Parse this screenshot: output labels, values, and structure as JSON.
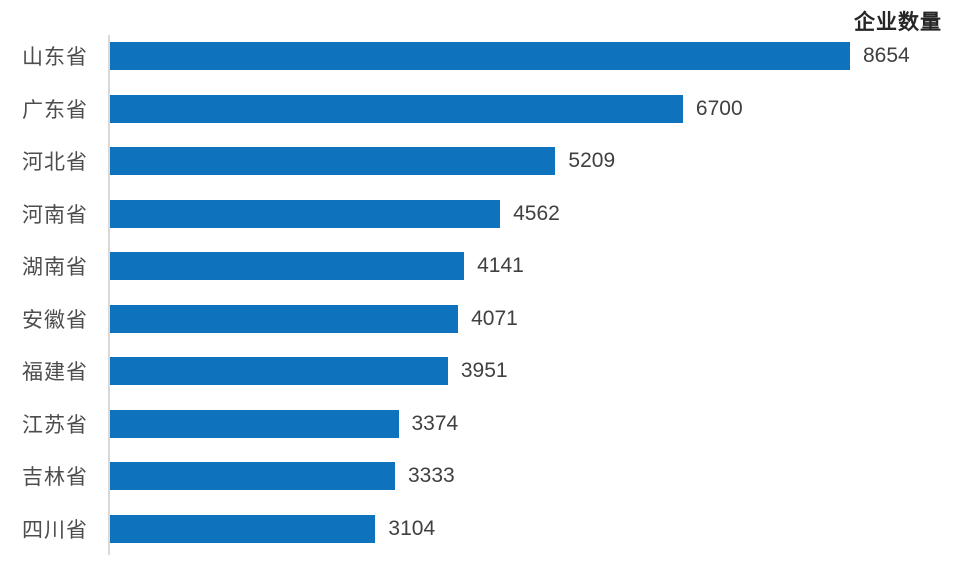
{
  "chart": {
    "title": "企业数量"
  },
  "chart_data": {
    "type": "bar",
    "orientation": "horizontal",
    "title": "企业数量",
    "xlabel": "",
    "ylabel": "",
    "categories": [
      "山东省",
      "广东省",
      "河北省",
      "河南省",
      "湖南省",
      "安徽省",
      "福建省",
      "江苏省",
      "吉林省",
      "四川省"
    ],
    "values": [
      8654,
      6700,
      5209,
      4562,
      4141,
      4071,
      3951,
      3374,
      3333,
      3104
    ],
    "xlim": [
      0,
      8654
    ],
    "grid": false,
    "legend_position": "top-right",
    "value_labels_shown": true,
    "sort_order": "descending"
  },
  "colors": {
    "bar": "#0E72BC",
    "axis_line": "#D9D9D9",
    "category_label": "#4D4D4D",
    "value_label": "#404040",
    "title": "#262626",
    "background": "#FFFFFF"
  }
}
